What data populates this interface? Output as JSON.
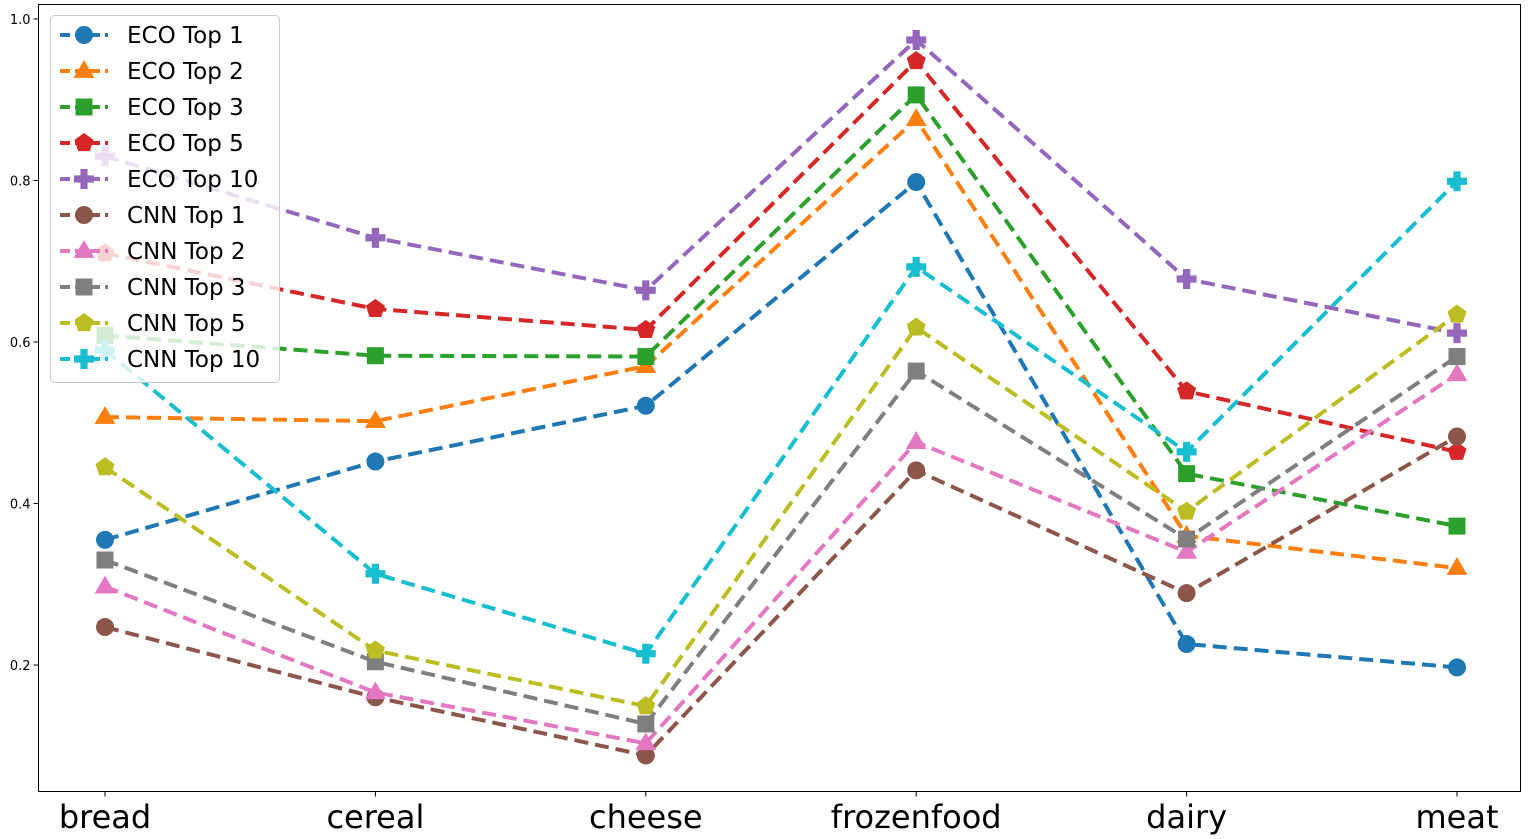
{
  "chart_data": {
    "type": "line",
    "title": "",
    "xlabel": "",
    "ylabel": "",
    "categories": [
      "bread",
      "cereal",
      "cheese",
      "frozenfood",
      "dairy",
      "meat"
    ],
    "ylim": [
      0.066,
      1.0
    ],
    "yticks": [
      0.2,
      0.4,
      0.6,
      0.8,
      1.0
    ],
    "ytick_labels": [
      "0.2",
      "0.4",
      "0.6",
      "0.8",
      "1.0"
    ],
    "grid": false,
    "legend_position": "top-left",
    "series": [
      {
        "name": "ECO Top 1",
        "color": "#1f77b4",
        "marker": "circle",
        "values": [
          0.355,
          0.452,
          0.521,
          0.798,
          0.226,
          0.197
        ]
      },
      {
        "name": "ECO Top 2",
        "color": "#ff7f0e",
        "marker": "triangle",
        "values": [
          0.507,
          0.502,
          0.57,
          0.876,
          0.36,
          0.32
        ]
      },
      {
        "name": "ECO Top 3",
        "color": "#2ca02c",
        "marker": "square",
        "values": [
          0.608,
          0.583,
          0.582,
          0.906,
          0.437,
          0.372
        ]
      },
      {
        "name": "ECO Top 5",
        "color": "#d62728",
        "marker": "pentagon",
        "values": [
          0.71,
          0.641,
          0.615,
          0.948,
          0.539,
          0.464
        ]
      },
      {
        "name": "ECO Top 10",
        "color": "#9467bd",
        "marker": "plus",
        "values": [
          0.83,
          0.729,
          0.664,
          0.974,
          0.678,
          0.611
        ]
      },
      {
        "name": "CNN Top 1",
        "color": "#8c564b",
        "marker": "circle",
        "values": [
          0.247,
          0.16,
          0.088,
          0.441,
          0.289,
          0.483
        ]
      },
      {
        "name": "CNN Top 2",
        "color": "#e377c2",
        "marker": "triangle",
        "values": [
          0.297,
          0.166,
          0.103,
          0.476,
          0.34,
          0.56
        ]
      },
      {
        "name": "CNN Top 3",
        "color": "#7f7f7f",
        "marker": "square",
        "values": [
          0.33,
          0.204,
          0.127,
          0.564,
          0.356,
          0.582
        ]
      },
      {
        "name": "CNN Top 5",
        "color": "#bcbd22",
        "marker": "pentagon",
        "values": [
          0.445,
          0.218,
          0.149,
          0.618,
          0.39,
          0.634
        ]
      },
      {
        "name": "CNN Top 10",
        "color": "#17becf",
        "marker": "plus",
        "values": [
          0.59,
          0.313,
          0.214,
          0.693,
          0.464,
          0.799
        ]
      }
    ]
  }
}
